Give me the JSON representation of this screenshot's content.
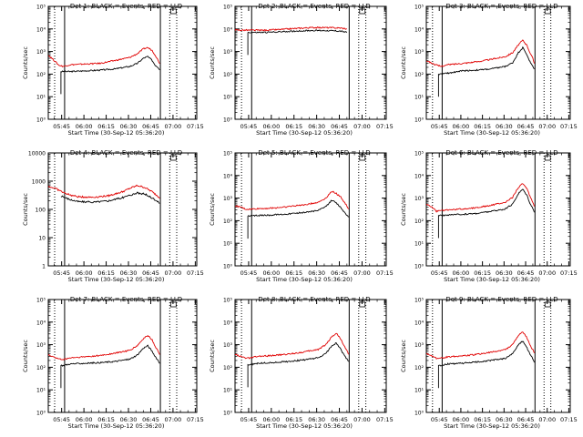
{
  "colors": {
    "events": "#000000",
    "lld": "#e00000",
    "axis": "#000000",
    "background": "#ffffff"
  },
  "common": {
    "xlabel": "Start Time (30-Sep-12 05:36:20)",
    "ylabel": "Counts/sec",
    "xticks": [
      "05:45",
      "06:00",
      "06:15",
      "06:30",
      "06:45",
      "07:00",
      "07:15"
    ],
    "xrange_minutes": [
      0,
      100
    ],
    "xtick_minutes": [
      9,
      24,
      39,
      54,
      69,
      84,
      99
    ],
    "marker_lines": [
      {
        "style": "dotted",
        "minute": 4.3
      },
      {
        "style": "solid",
        "minute": 11.0
      },
      {
        "style": "solid",
        "minute": 75.5
      },
      {
        "style": "dotted",
        "minute": 81.8
      },
      {
        "style": "dotted",
        "minute": 86.5
      }
    ]
  },
  "chart_data": [
    {
      "type": "line",
      "title": "Det 1: BLACK = Events, RED = LLD",
      "yscale": "log",
      "ylim": [
        1,
        100000
      ],
      "yticklabels": [
        "10⁰",
        "10¹",
        "10²",
        "10³",
        "10⁴",
        "10⁵"
      ],
      "ytick_values": [
        1,
        10,
        100,
        1000,
        10000,
        100000
      ],
      "x": [
        0,
        4,
        7,
        10,
        15,
        25,
        35,
        45,
        55,
        60,
        64,
        67,
        70,
        72,
        74,
        75
      ],
      "series": [
        {
          "name": "BLACK = Events",
          "color": "black",
          "start": 8.5,
          "values": [
            null,
            null,
            null,
            130,
            130,
            140,
            150,
            170,
            220,
            300,
            500,
            600,
            400,
            250,
            200,
            160
          ]
        },
        {
          "name": "RED = LLD",
          "color": "red",
          "start": 0,
          "values": [
            700,
            400,
            250,
            220,
            260,
            280,
            300,
            400,
            550,
            800,
            1300,
            1500,
            1100,
            700,
            400,
            300
          ]
        }
      ]
    },
    {
      "type": "line",
      "title": "Det 2: BLACK = Events, RED = LLD",
      "yscale": "log",
      "ylim": [
        1,
        100000
      ],
      "yticklabels": [
        "10⁰",
        "10¹",
        "10²",
        "10³",
        "10⁴",
        "10⁵"
      ],
      "ytick_values": [
        1,
        10,
        100,
        1000,
        10000,
        100000
      ],
      "x": [
        0,
        10,
        20,
        30,
        40,
        50,
        60,
        70,
        74
      ],
      "series": [
        {
          "name": "BLACK = Events",
          "color": "black",
          "start": 8.5,
          "values": [
            null,
            7000,
            7000,
            7500,
            8000,
            8500,
            8500,
            8000,
            7000
          ]
        },
        {
          "name": "RED = LLD",
          "color": "red",
          "start": 0,
          "values": [
            9000,
            8800,
            8800,
            9500,
            10500,
            11500,
            11500,
            11000,
            10000
          ]
        }
      ]
    },
    {
      "type": "line",
      "title": "Det 3: BLACK = Events, RED = LLD",
      "yscale": "log",
      "ylim": [
        1,
        100000
      ],
      "yticklabels": [
        "10⁰",
        "10¹",
        "10²",
        "10³",
        "10⁴",
        "10⁵"
      ],
      "ytick_values": [
        1,
        10,
        100,
        1000,
        10000,
        100000
      ],
      "x": [
        0,
        4,
        7,
        10,
        15,
        25,
        35,
        45,
        55,
        60,
        64,
        67,
        70,
        72,
        74,
        75
      ],
      "series": [
        {
          "name": "BLACK = Events",
          "color": "black",
          "start": 8.5,
          "values": [
            null,
            null,
            null,
            100,
            110,
            140,
            150,
            170,
            220,
            320,
            900,
            1500,
            700,
            350,
            220,
            160
          ]
        },
        {
          "name": "RED = LLD",
          "color": "red",
          "start": 0,
          "values": [
            400,
            300,
            250,
            220,
            260,
            300,
            350,
            450,
            600,
            900,
            2000,
            3200,
            1800,
            900,
            500,
            300
          ]
        }
      ]
    },
    {
      "type": "line",
      "title": "Det 4: BLACK = Events, RED = LLD",
      "yscale": "log",
      "ylim": [
        1,
        10000
      ],
      "yticklabels": [
        "1",
        "10",
        "100",
        "1000",
        "10000"
      ],
      "ytick_values": [
        1,
        10,
        100,
        1000,
        10000
      ],
      "x": [
        0,
        5,
        10,
        15,
        20,
        30,
        40,
        50,
        55,
        60,
        65,
        70,
        75
      ],
      "series": [
        {
          "name": "BLACK = Events",
          "color": "black",
          "start": 8.5,
          "values": [
            null,
            null,
            280,
            220,
            190,
            180,
            200,
            260,
            320,
            380,
            350,
            250,
            170
          ]
        },
        {
          "name": "RED = LLD",
          "color": "red",
          "start": 0,
          "values": [
            650,
            550,
            400,
            320,
            280,
            270,
            300,
            420,
            560,
            700,
            600,
            420,
            260
          ]
        }
      ]
    },
    {
      "type": "line",
      "title": "Det 5: BLACK = Events, RED = LLD",
      "yscale": "log",
      "ylim": [
        1,
        100000
      ],
      "yticklabels": [
        "10⁰",
        "10¹",
        "10²",
        "10³",
        "10⁴",
        "10⁵"
      ],
      "ytick_values": [
        1,
        10,
        100,
        1000,
        10000,
        100000
      ],
      "x": [
        0,
        4,
        7,
        10,
        15,
        25,
        35,
        45,
        55,
        60,
        64,
        67,
        70,
        72,
        74,
        75
      ],
      "series": [
        {
          "name": "BLACK = Events",
          "color": "black",
          "start": 8.5,
          "values": [
            null,
            null,
            null,
            160,
            170,
            180,
            200,
            230,
            280,
            420,
            800,
            600,
            380,
            250,
            180,
            140
          ]
        },
        {
          "name": "RED = LLD",
          "color": "red",
          "start": 0,
          "values": [
            450,
            400,
            320,
            320,
            340,
            360,
            420,
            500,
            650,
            1000,
            2000,
            1600,
            1100,
            700,
            450,
            320
          ]
        }
      ]
    },
    {
      "type": "line",
      "title": "Det 6: BLACK = Events, RED = LLD",
      "yscale": "log",
      "ylim": [
        1,
        100000
      ],
      "yticklabels": [
        "10⁰",
        "10¹",
        "10²",
        "10³",
        "10⁴",
        "10⁵"
      ],
      "ytick_values": [
        1,
        10,
        100,
        1000,
        10000,
        100000
      ],
      "x": [
        0,
        4,
        7,
        10,
        15,
        25,
        35,
        45,
        55,
        60,
        64,
        67,
        70,
        72,
        74,
        75
      ],
      "series": [
        {
          "name": "BLACK = Events",
          "color": "black",
          "start": 8.5,
          "values": [
            null,
            null,
            null,
            170,
            180,
            190,
            210,
            260,
            330,
            550,
            1600,
            2500,
            1300,
            600,
            350,
            250
          ]
        },
        {
          "name": "RED = LLD",
          "color": "red",
          "start": 0,
          "values": [
            550,
            400,
            260,
            280,
            300,
            330,
            380,
            480,
            650,
            1100,
            3000,
            4500,
            2500,
            1200,
            650,
            450
          ]
        }
      ]
    },
    {
      "type": "line",
      "title": "Det 7: BLACK = Events, RED = LLD",
      "yscale": "log",
      "ylim": [
        1,
        100000
      ],
      "yticklabels": [
        "10⁰",
        "10¹",
        "10²",
        "10³",
        "10⁴",
        "10⁵"
      ],
      "ytick_values": [
        1,
        10,
        100,
        1000,
        10000,
        100000
      ],
      "x": [
        0,
        4,
        7,
        10,
        15,
        25,
        35,
        45,
        55,
        60,
        64,
        67,
        70,
        72,
        74,
        75
      ],
      "series": [
        {
          "name": "BLACK = Events",
          "color": "black",
          "start": 8.5,
          "values": [
            null,
            null,
            null,
            120,
            140,
            150,
            160,
            180,
            230,
            350,
            700,
            900,
            500,
            300,
            200,
            150
          ]
        },
        {
          "name": "RED = LLD",
          "color": "red",
          "start": 0,
          "values": [
            350,
            280,
            230,
            220,
            260,
            290,
            330,
            420,
            560,
            900,
            1800,
            2600,
            1600,
            850,
            500,
            350
          ]
        }
      ]
    },
    {
      "type": "line",
      "title": "Det 8: BLACK = Events, RED = LLD",
      "yscale": "log",
      "ylim": [
        1,
        100000
      ],
      "yticklabels": [
        "10⁰",
        "10¹",
        "10²",
        "10³",
        "10⁴",
        "10⁵"
      ],
      "ytick_values": [
        1,
        10,
        100,
        1000,
        10000,
        100000
      ],
      "x": [
        0,
        4,
        7,
        10,
        15,
        25,
        35,
        45,
        55,
        60,
        64,
        67,
        70,
        72,
        74,
        75
      ],
      "series": [
        {
          "name": "BLACK = Events",
          "color": "black",
          "start": 8.5,
          "values": [
            null,
            null,
            null,
            130,
            150,
            160,
            180,
            210,
            260,
            400,
            900,
            1200,
            600,
            350,
            230,
            170
          ]
        },
        {
          "name": "RED = LLD",
          "color": "red",
          "start": 0,
          "values": [
            380,
            300,
            250,
            260,
            300,
            330,
            380,
            470,
            620,
            1000,
            2300,
            3200,
            1800,
            900,
            550,
            380
          ]
        }
      ]
    },
    {
      "type": "line",
      "title": "Det 9: BLACK = Events, RED = LLD",
      "yscale": "log",
      "ylim": [
        1,
        100000
      ],
      "yticklabels": [
        "10⁰",
        "10¹",
        "10²",
        "10³",
        "10⁴",
        "10⁵"
      ],
      "ytick_values": [
        1,
        10,
        100,
        1000,
        10000,
        100000
      ],
      "x": [
        0,
        4,
        7,
        10,
        15,
        25,
        35,
        45,
        55,
        60,
        64,
        67,
        70,
        72,
        74,
        75
      ],
      "series": [
        {
          "name": "BLACK = Events",
          "color": "black",
          "start": 8.5,
          "values": [
            null,
            null,
            null,
            120,
            140,
            150,
            170,
            200,
            250,
            400,
            1000,
            1500,
            700,
            380,
            240,
            170
          ]
        },
        {
          "name": "RED = LLD",
          "color": "red",
          "start": 0,
          "values": [
            400,
            320,
            250,
            250,
            290,
            320,
            370,
            460,
            610,
            1000,
            2600,
            3600,
            2000,
            1000,
            600,
            400
          ]
        }
      ]
    }
  ]
}
